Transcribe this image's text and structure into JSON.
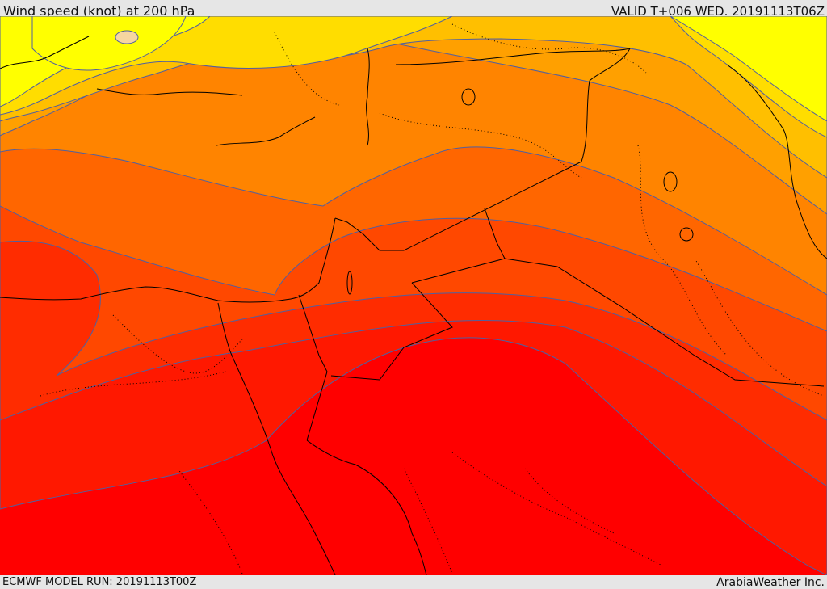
{
  "header": {
    "title": "Wind speed (knot) at 200 hPa",
    "valid_time": "VALID T+006 WED. 20191113T06Z"
  },
  "footer": {
    "model_run": "ECMWF MODEL RUN: 20191113T00Z",
    "credit": "ArabiaWeather Inc."
  },
  "map": {
    "field": "wind speed at 200 hPa",
    "palette": [
      "#ffff00",
      "#ffdd00",
      "#ffbf00",
      "#ffa000",
      "#ff8400",
      "#ff6600",
      "#ff4800",
      "#ff2c00",
      "#ff1800",
      "#ff0000"
    ],
    "contour_color": "#5060a0",
    "border_color": "#000000"
  }
}
